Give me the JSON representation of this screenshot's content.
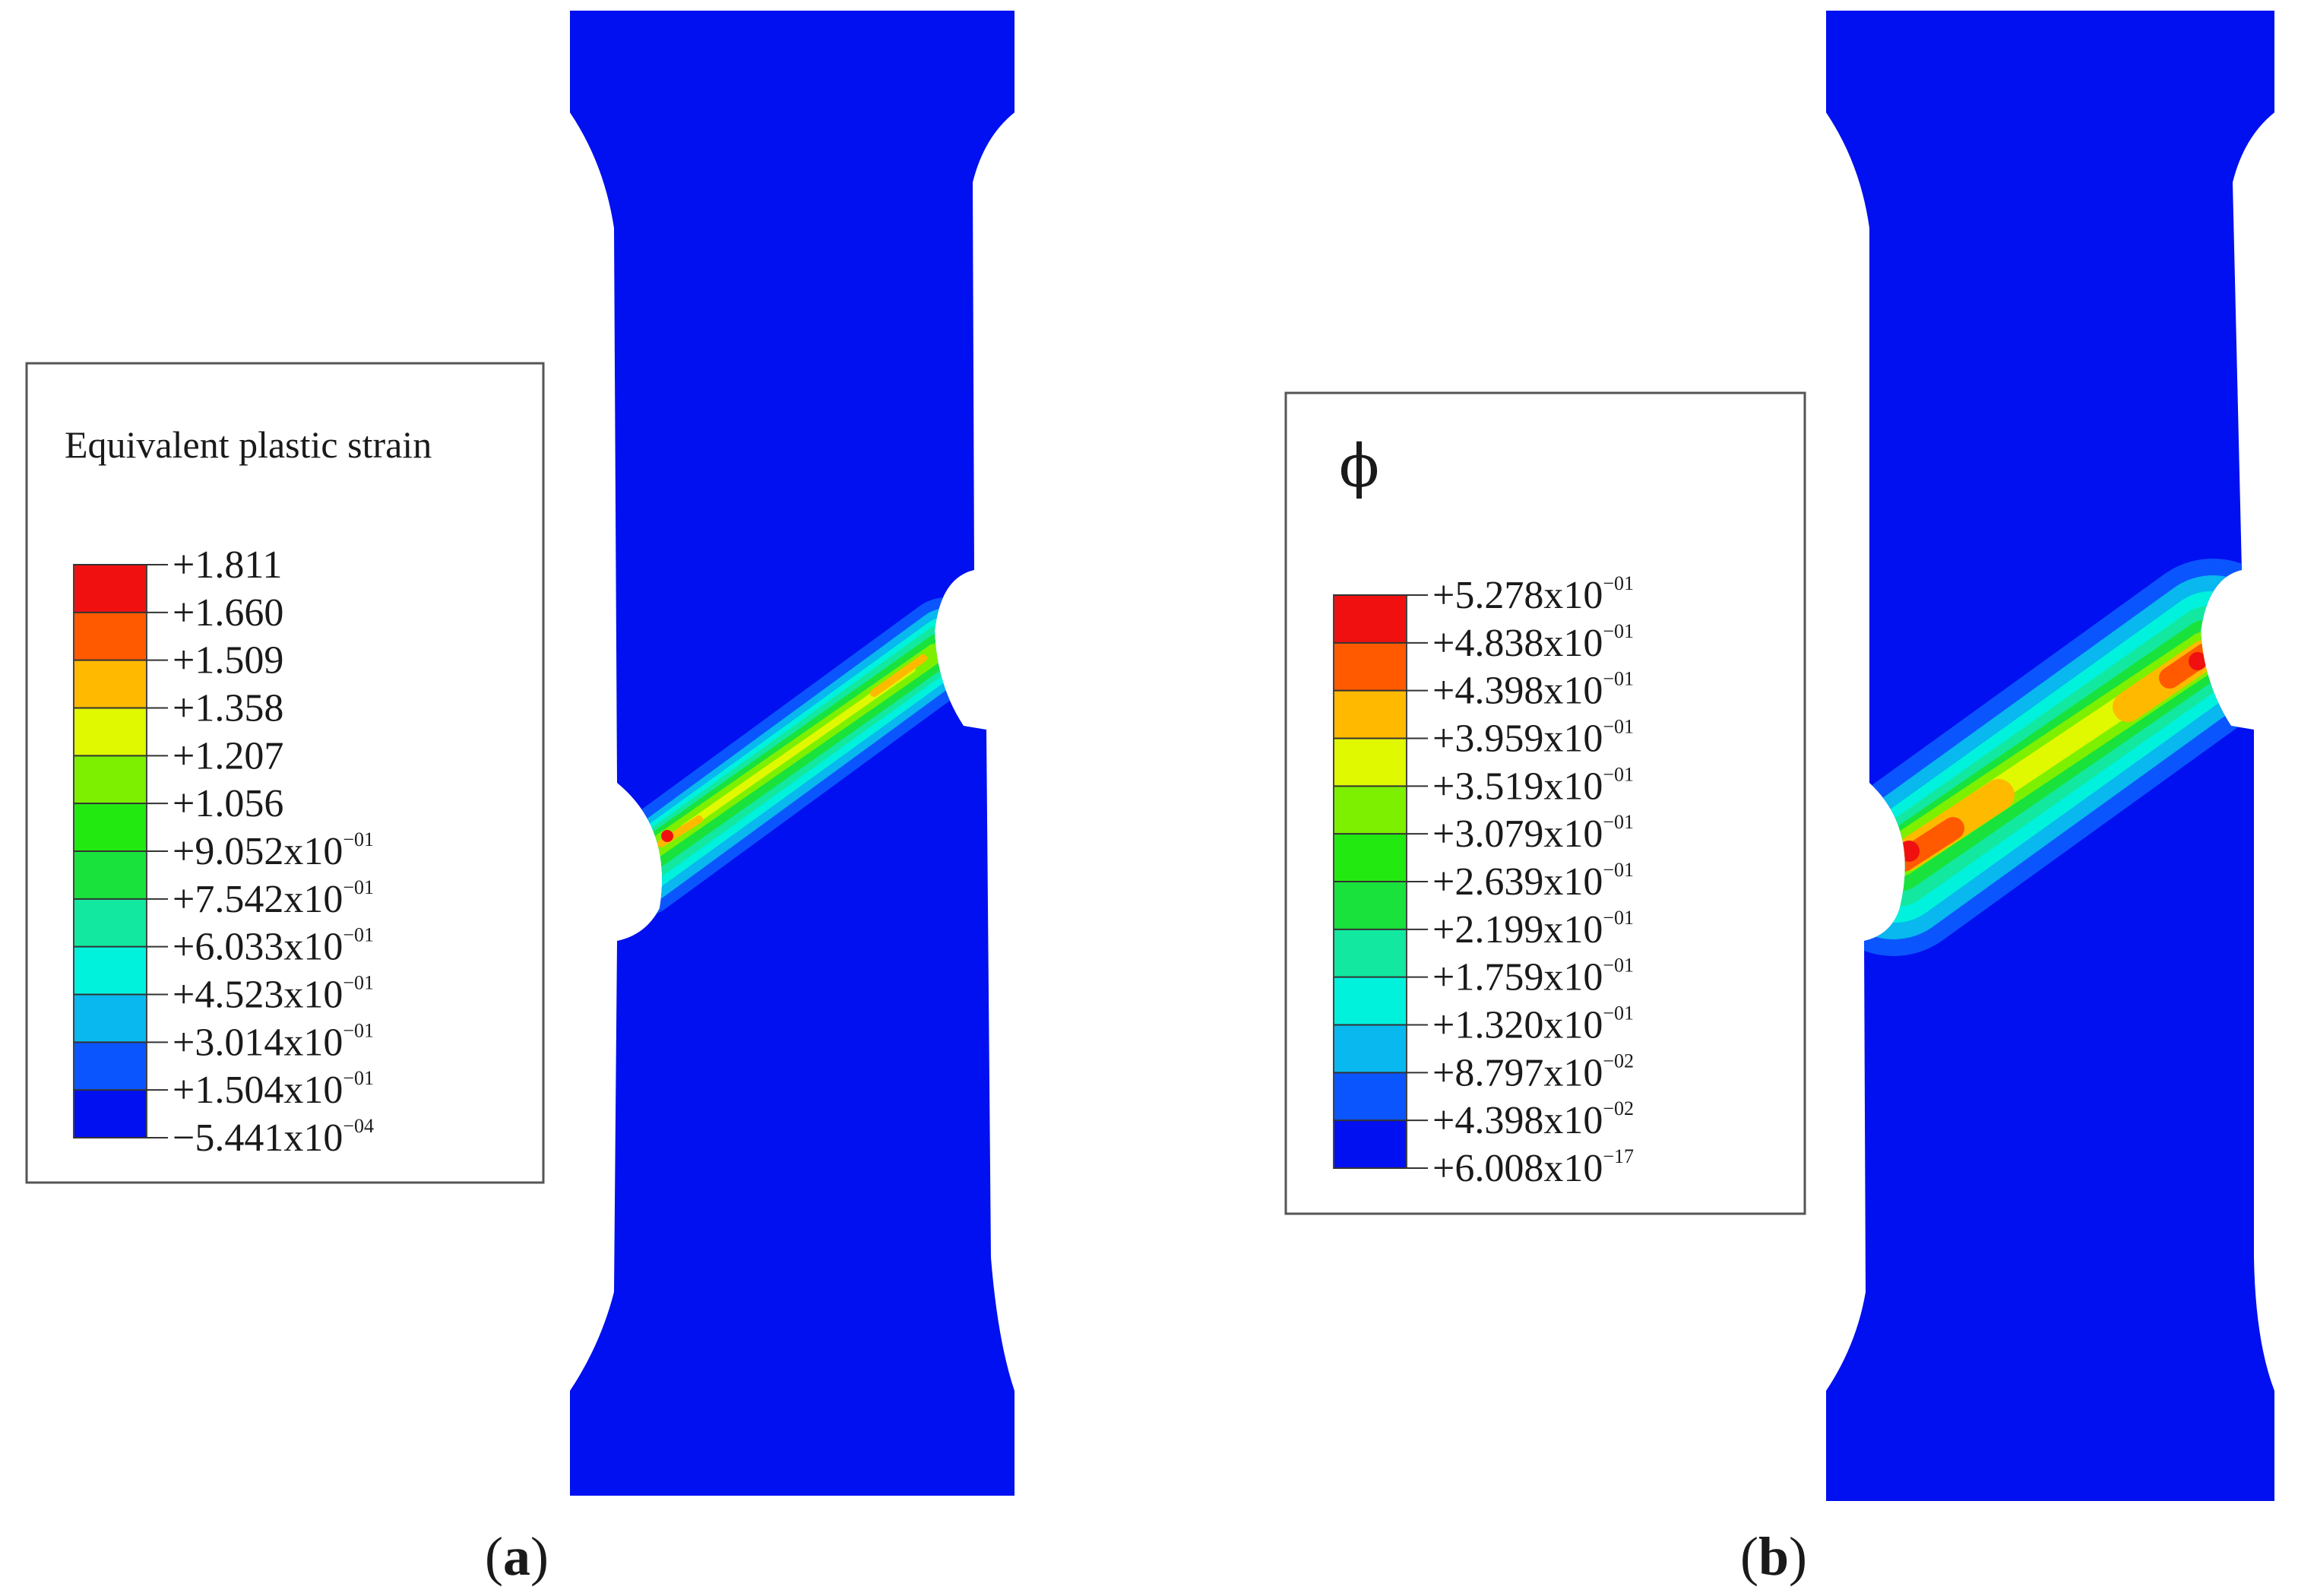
{
  "colors": {
    "background_field": "#0010f0",
    "band": [
      "#0010f0",
      "#0b55ff",
      "#08b8ee",
      "#00f2dd",
      "#12e8a0",
      "#19e23c",
      "#22ea10",
      "#7df000",
      "#e0f800",
      "#ffba00",
      "#ff5a00",
      "#f01010"
    ]
  },
  "panels": [
    {
      "label_open": "(",
      "label_letter": "a",
      "label_close": ")",
      "legend": {
        "title": "Equivalent plastic strain",
        "symbol": "",
        "swatches": [
          "#0010f0",
          "#0b55ff",
          "#08b8ee",
          "#00f2dd",
          "#12e8a0",
          "#19e23c",
          "#22ea10",
          "#7df000",
          "#e0f800",
          "#ffba00",
          "#ff5a00",
          "#f01010"
        ],
        "ticks": [
          {
            "mantissa": "+1.811",
            "exp": ""
          },
          {
            "mantissa": "+1.660",
            "exp": ""
          },
          {
            "mantissa": "+1.509",
            "exp": ""
          },
          {
            "mantissa": "+1.358",
            "exp": ""
          },
          {
            "mantissa": "+1.207",
            "exp": ""
          },
          {
            "mantissa": "+1.056",
            "exp": ""
          },
          {
            "mantissa": "+9.052x10",
            "exp": "−01"
          },
          {
            "mantissa": "+7.542x10",
            "exp": "−01"
          },
          {
            "mantissa": "+6.033x10",
            "exp": "−01"
          },
          {
            "mantissa": "+4.523x10",
            "exp": "−01"
          },
          {
            "mantissa": "+3.014x10",
            "exp": "−01"
          },
          {
            "mantissa": "+1.504x10",
            "exp": "−01"
          },
          {
            "mantissa": "−5.441x10",
            "exp": "−04"
          }
        ]
      }
    },
    {
      "label_open": "(",
      "label_letter": "b",
      "label_close": ")",
      "legend": {
        "title": "",
        "symbol": "ϕ",
        "swatches": [
          "#0010f0",
          "#0b55ff",
          "#08b8ee",
          "#00f2dd",
          "#12e8a0",
          "#19e23c",
          "#22ea10",
          "#7df000",
          "#e0f800",
          "#ffba00",
          "#ff5a00",
          "#f01010"
        ],
        "ticks": [
          {
            "mantissa": "+5.278x10",
            "exp": "−01"
          },
          {
            "mantissa": "+4.838x10",
            "exp": "−01"
          },
          {
            "mantissa": "+4.398x10",
            "exp": "−01"
          },
          {
            "mantissa": "+3.959x10",
            "exp": "−01"
          },
          {
            "mantissa": "+3.519x10",
            "exp": "−01"
          },
          {
            "mantissa": "+3.079x10",
            "exp": "−01"
          },
          {
            "mantissa": "+2.639x10",
            "exp": "−01"
          },
          {
            "mantissa": "+2.199x10",
            "exp": "−01"
          },
          {
            "mantissa": "+1.759x10",
            "exp": "−01"
          },
          {
            "mantissa": "+1.320x10",
            "exp": "−01"
          },
          {
            "mantissa": "+8.797x10",
            "exp": "−02"
          },
          {
            "mantissa": "+4.398x10",
            "exp": "−02"
          },
          {
            "mantissa": "+6.008x10",
            "exp": "−17"
          }
        ]
      }
    }
  ]
}
